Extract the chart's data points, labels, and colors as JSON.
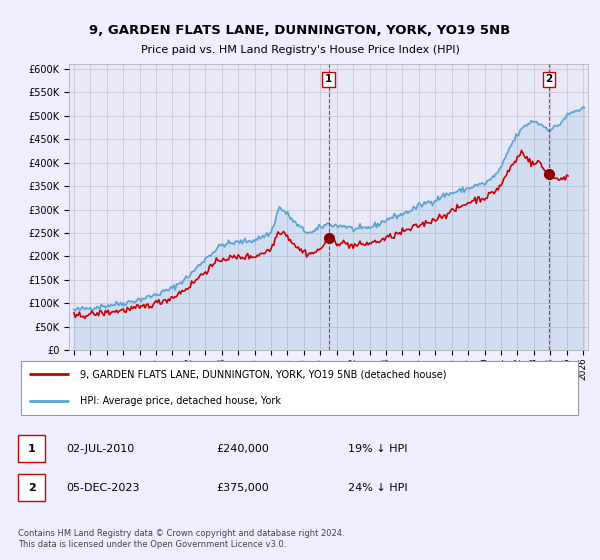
{
  "title_line1": "9, GARDEN FLATS LANE, DUNNINGTON, YORK, YO19 5NB",
  "title_line2": "Price paid vs. HM Land Registry's House Price Index (HPI)",
  "ylabel_ticks": [
    "£0",
    "£50K",
    "£100K",
    "£150K",
    "£200K",
    "£250K",
    "£300K",
    "£350K",
    "£400K",
    "£450K",
    "£500K",
    "£550K",
    "£600K"
  ],
  "ytick_values": [
    0,
    50000,
    100000,
    150000,
    200000,
    250000,
    300000,
    350000,
    400000,
    450000,
    500000,
    550000,
    600000
  ],
  "ylim": [
    0,
    610000
  ],
  "xlim_start": 1994.7,
  "xlim_end": 2026.3,
  "xtick_years": [
    1995,
    1996,
    1997,
    1998,
    1999,
    2000,
    2001,
    2002,
    2003,
    2004,
    2005,
    2006,
    2007,
    2008,
    2009,
    2010,
    2011,
    2012,
    2013,
    2014,
    2015,
    2016,
    2017,
    2018,
    2019,
    2020,
    2021,
    2022,
    2023,
    2024,
    2025,
    2026
  ],
  "transaction1_year": 2010.5,
  "transaction1_value": 240000,
  "transaction2_year": 2023.92,
  "transaction2_value": 375000,
  "hpi_color": "#5ba3d0",
  "price_color": "#cc0000",
  "grid_color": "#c8c8d8",
  "bg_color": "#eeeeff",
  "plot_bg": "#e8e8f8",
  "legend1_text": "9, GARDEN FLATS LANE, DUNNINGTON, YORK, YO19 5NB (detached house)",
  "legend2_text": "HPI: Average price, detached house, York",
  "ann1_date": "02-JUL-2010",
  "ann1_price": "£240,000",
  "ann1_hpi": "19% ↓ HPI",
  "ann2_date": "05-DEC-2023",
  "ann2_price": "£375,000",
  "ann2_hpi": "24% ↓ HPI",
  "footnote": "Contains HM Land Registry data © Crown copyright and database right 2024.\nThis data is licensed under the Open Government Licence v3.0."
}
